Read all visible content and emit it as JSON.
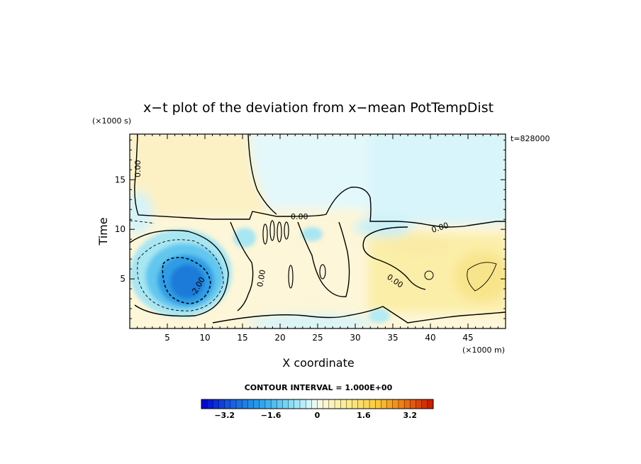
{
  "chart_data": {
    "type": "heatmap",
    "title": "x−t plot of the deviation from x−mean PotTempDist",
    "xlabel": "X coordinate",
    "ylabel": "Time",
    "x_unit": "(×1000 m)",
    "y_unit": "(×1000 s)",
    "time_stamp": "t=828000",
    "xlim": [
      0,
      50
    ],
    "ylim": [
      0,
      19.6
    ],
    "x_ticks": [
      5,
      10,
      15,
      20,
      25,
      30,
      35,
      40,
      45
    ],
    "x_tick_labels": [
      "5",
      "10",
      "15",
      "20",
      "25",
      "30",
      "35",
      "40",
      "45"
    ],
    "y_ticks": [
      5,
      10,
      15
    ],
    "y_tick_labels": [
      "5",
      "10",
      "15"
    ],
    "contour_interval_text": "CONTOUR INTERVAL = 1.000E+00",
    "contour_labels": [
      {
        "text": "0.00",
        "x": 1.2,
        "y": 16.3
      },
      {
        "text": "0.00",
        "x": 22.5,
        "y": 11.4
      },
      {
        "text": "0.00",
        "x": 41.2,
        "y": 10.1
      },
      {
        "text": "0.00",
        "x": 17.0,
        "y": 4.9
      },
      {
        "text": "0.00",
        "x": 35.0,
        "y": 5.0
      },
      {
        "text": "-2.00",
        "x": 9.3,
        "y": 4.2
      }
    ],
    "colorbar": {
      "min": -4.0,
      "max": 4.0,
      "tick_values": [
        -3.2,
        -1.6,
        0,
        1.6,
        3.2
      ],
      "tick_labels": [
        "−3.2",
        "−1.6",
        "0",
        "1.6",
        "3.2"
      ]
    },
    "features": [
      {
        "kind": "cold_core",
        "center_x": 7.0,
        "center_y": 5.0,
        "min_value": -2.5
      },
      {
        "kind": "warm_region",
        "x_range": [
          25,
          50
        ],
        "y_range": [
          0,
          11
        ]
      }
    ]
  }
}
